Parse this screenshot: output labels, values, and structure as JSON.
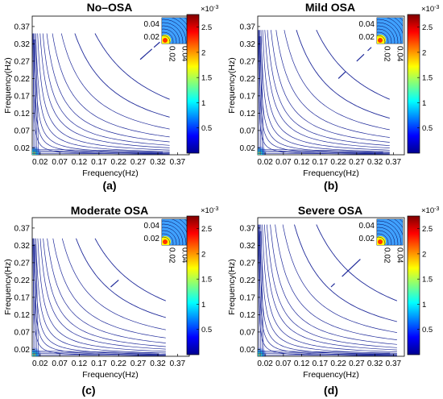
{
  "chart_data": [
    {
      "type": "heatmap",
      "panel_label": "(a)",
      "title": "No–OSA",
      "xlabel": "Frequency(Hz)",
      "ylabel": "Frequency(Hz)",
      "xlim": [
        0.0,
        0.4
      ],
      "ylim": [
        0.0,
        0.4
      ],
      "x_ticks": [
        "0.02",
        "0.07",
        "0.12",
        "0.17",
        "0.22",
        "0.27",
        "0.32",
        "0.37"
      ],
      "y_ticks": [
        "0.02",
        "0.07",
        "0.12",
        "0.17",
        "0.22",
        "0.27",
        "0.32",
        "0.37"
      ],
      "inset_ticks": [
        "0.02",
        "0.04"
      ],
      "colorbar": {
        "ticks": [
          "0.5",
          "1",
          "1.5",
          "2",
          "2.5"
        ],
        "min": 0.0,
        "max": 2.75,
        "exponent": "×10",
        "exponent_power": "-3"
      },
      "contour_extent": 0.35,
      "diag_segments": [
        [
          0.29,
          0.275
        ],
        [
          0.305,
          0.29
        ],
        [
          0.325,
          0.31
        ]
      ]
    },
    {
      "type": "heatmap",
      "panel_label": "(b)",
      "title": "Mild OSA",
      "xlabel": "Frequency(Hz)",
      "ylabel": "Frequency(Hz)",
      "xlim": [
        0.0,
        0.4
      ],
      "ylim": [
        0.0,
        0.4
      ],
      "x_ticks": [
        "0.02",
        "0.07",
        "0.12",
        "0.17",
        "0.22",
        "0.27",
        "0.32",
        "0.37"
      ],
      "y_ticks": [
        "0.02",
        "0.07",
        "0.12",
        "0.17",
        "0.22",
        "0.27",
        "0.32",
        "0.37"
      ],
      "inset_ticks": [
        "0.02",
        "0.04"
      ],
      "colorbar": {
        "ticks": [
          "0.5",
          "1",
          "1.5",
          "2",
          "2.5"
        ],
        "min": 0.0,
        "max": 2.75,
        "exponent": "×10",
        "exponent_power": "-3"
      },
      "contour_extent": 0.36,
      "diag_segments": [
        [
          0.22,
          0.24
        ],
        [
          0.27,
          0.29
        ],
        [
          0.3,
          0.31
        ]
      ]
    },
    {
      "type": "heatmap",
      "panel_label": "(c)",
      "title": "Moderate OSA",
      "xlabel": "Frequency(Hz)",
      "ylabel": "Frequency(Hz)",
      "xlim": [
        0.0,
        0.4
      ],
      "ylim": [
        0.0,
        0.4
      ],
      "x_ticks": [
        "0.02",
        "0.07",
        "0.12",
        "0.17",
        "0.22",
        "0.27",
        "0.32",
        "0.37"
      ],
      "y_ticks": [
        "0.02",
        "0.07",
        "0.12",
        "0.17",
        "0.22",
        "0.27",
        "0.32",
        "0.37"
      ],
      "inset_ticks": [
        "0.02",
        "0.04"
      ],
      "colorbar": {
        "ticks": [
          "0.5",
          "1",
          "1.5",
          "2",
          "2.5"
        ],
        "min": 0.0,
        "max": 2.75,
        "exponent": "×10",
        "exponent_power": "-3"
      },
      "contour_extent": 0.34,
      "diag_segments": [
        [
          0.2,
          0.21
        ],
        [
          0.21,
          0.22
        ]
      ]
    },
    {
      "type": "heatmap",
      "panel_label": "(d)",
      "title": "Severe OSA",
      "xlabel": "Frequency(Hz)",
      "ylabel": "Frequency(Hz)",
      "xlim": [
        0.0,
        0.4
      ],
      "ylim": [
        0.0,
        0.4
      ],
      "x_ticks": [
        "0.02",
        "0.07",
        "0.12",
        "0.17",
        "0.22",
        "0.27",
        "0.32",
        "0.37"
      ],
      "y_ticks": [
        "0.02",
        "0.07",
        "0.12",
        "0.17",
        "0.22",
        "0.27",
        "0.32",
        "0.37"
      ],
      "inset_ticks": [
        "0.02",
        "0.04"
      ],
      "colorbar": {
        "ticks": [
          "0.5",
          "1",
          "1.5",
          "2",
          "2.5"
        ],
        "min": 0.0,
        "max": 2.75,
        "exponent": "×10",
        "exponent_power": "-3"
      },
      "contour_extent": 0.38,
      "diag_segments": [
        [
          0.2,
          0.21
        ],
        [
          0.23,
          0.28
        ]
      ]
    }
  ],
  "colors": {
    "contour": "#1f2a9a",
    "axis": "#000000"
  }
}
